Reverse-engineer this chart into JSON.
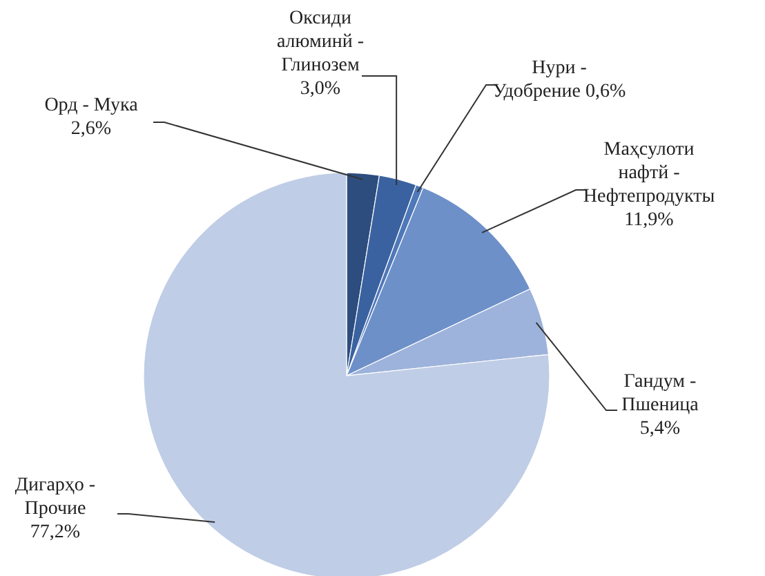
{
  "chart_data": {
    "type": "pie",
    "categories": [
      "Орд - Мука",
      "Оксиди\nалюминй -\nГлинозем",
      "Нури -\nУдобрение",
      "Маҳсулоти\nнафтй -\nНефтепродукты",
      "Гандум  -\nПшеница",
      "Дигарҳо -\nПрочие"
    ],
    "values": [
      2.6,
      3.0,
      0.6,
      11.9,
      5.4,
      77.2
    ],
    "value_labels": [
      "2,6%",
      "3,0%",
      "0,6%",
      "11,9%",
      "5,4%",
      "77,2%"
    ],
    "colors": [
      "#2c4d7e",
      "#3b62a0",
      "#4f78b8",
      "#6d90c9",
      "#9db3db",
      "#c0cde6"
    ]
  }
}
